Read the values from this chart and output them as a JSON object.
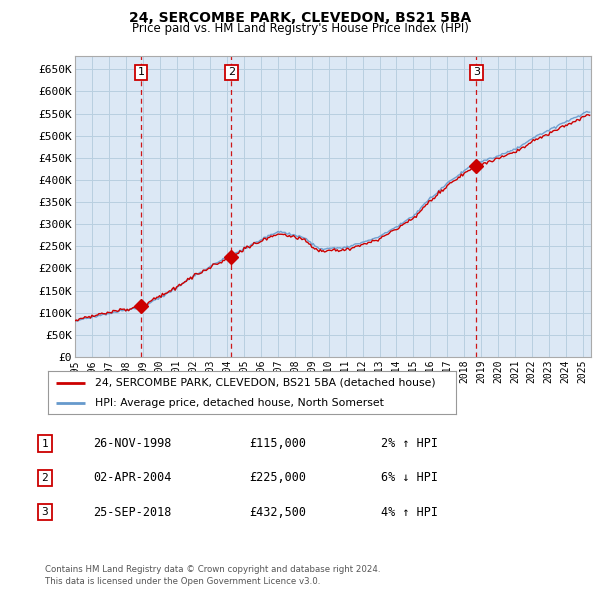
{
  "title": "24, SERCOMBE PARK, CLEVEDON, BS21 5BA",
  "subtitle": "Price paid vs. HM Land Registry's House Price Index (HPI)",
  "ylim": [
    0,
    680000
  ],
  "yticks": [
    0,
    50000,
    100000,
    150000,
    200000,
    250000,
    300000,
    350000,
    400000,
    450000,
    500000,
    550000,
    600000,
    650000
  ],
  "ytick_labels": [
    "£0",
    "£50K",
    "£100K",
    "£150K",
    "£200K",
    "£250K",
    "£300K",
    "£350K",
    "£400K",
    "£450K",
    "£500K",
    "£550K",
    "£600K",
    "£650K"
  ],
  "transactions": [
    {
      "label": "1",
      "date_x": 1998.9,
      "price": 115000,
      "pct": "2%",
      "direction": "↑",
      "date_str": "26-NOV-1998"
    },
    {
      "label": "2",
      "date_x": 2004.25,
      "price": 225000,
      "pct": "6%",
      "direction": "↓",
      "date_str": "02-APR-2004"
    },
    {
      "label": "3",
      "date_x": 2018.73,
      "price": 432500,
      "pct": "4%",
      "direction": "↑",
      "date_str": "25-SEP-2018"
    }
  ],
  "legend_label_red": "24, SERCOMBE PARK, CLEVEDON, BS21 5BA (detached house)",
  "legend_label_blue": "HPI: Average price, detached house, North Somerset",
  "footer1": "Contains HM Land Registry data © Crown copyright and database right 2024.",
  "footer2": "This data is licensed under the Open Government Licence v3.0.",
  "red_color": "#cc0000",
  "blue_color": "#6699cc",
  "dashed_color": "#cc0000",
  "bg_color": "#ffffff",
  "chart_bg_color": "#dce8f5",
  "grid_color": "#b8cfe0",
  "transaction_box_color": "#cc0000",
  "xlim_start": 1995,
  "xlim_end": 2025.5
}
